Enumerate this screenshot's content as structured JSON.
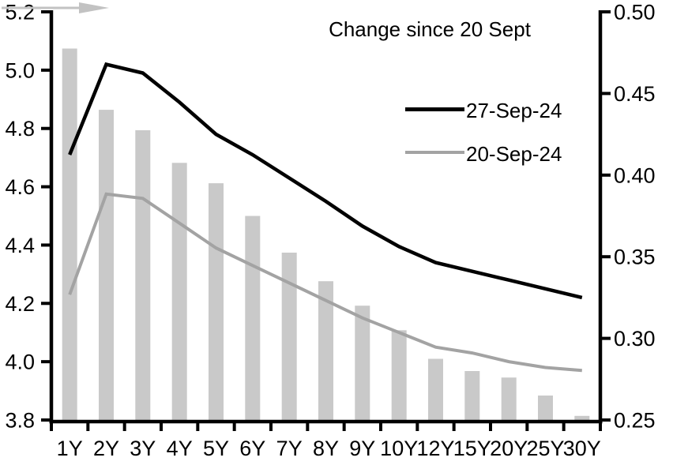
{
  "chart_data": {
    "type": "bar+line combo (dual axis)",
    "categories": [
      "1Y",
      "2Y",
      "3Y",
      "4Y",
      "5Y",
      "6Y",
      "7Y",
      "8Y",
      "9Y",
      "10Y",
      "12Y",
      "15Y",
      "20Y",
      "25Y",
      "30Y"
    ],
    "series": [
      {
        "name": "Change since 20 Sept",
        "type": "bar",
        "axis": "right",
        "color": "#c9c9c9",
        "values": [
          0.4775,
          0.44,
          0.4275,
          0.4075,
          0.395,
          0.375,
          0.3525,
          0.335,
          0.32,
          0.305,
          0.2875,
          0.28,
          0.276,
          0.265,
          0.2525
        ]
      },
      {
        "name": "27-Sep-24",
        "type": "line",
        "axis": "left",
        "color": "#000000",
        "values": [
          4.71,
          5.02,
          4.99,
          4.89,
          4.78,
          4.71,
          4.63,
          4.55,
          4.465,
          4.395,
          4.34,
          4.31,
          4.28,
          4.25,
          4.22
        ]
      },
      {
        "name": "20-Sep-24",
        "type": "line",
        "axis": "left",
        "color": "#a3a3a3",
        "values": [
          4.23,
          4.575,
          4.56,
          4.475,
          4.39,
          4.33,
          4.27,
          4.21,
          4.15,
          4.1,
          4.05,
          4.03,
          4.0,
          3.98,
          3.97
        ]
      }
    ],
    "left_axis": {
      "min": 3.8,
      "max": 5.2,
      "step": 0.2,
      "tick_labels": [
        "5.2",
        "5.0",
        "4.8",
        "4.6",
        "4.4",
        "4.2",
        "4.0",
        "3.8"
      ]
    },
    "right_axis": {
      "min": 0.25,
      "max": 0.5,
      "step": 0.05,
      "tick_labels": [
        "0.50",
        "0.45",
        "0.40",
        "0.35",
        "0.30",
        "0.25"
      ]
    },
    "legend": {
      "position": "top-right-inside",
      "arrow_color": "#c2c2c2",
      "bar_series_label": "Change since 20 Sept",
      "line1_label": "27-Sep-24",
      "line2_label": "20-Sep-24"
    },
    "grid": false,
    "title": "",
    "xlabel": "",
    "ylabel": ""
  }
}
